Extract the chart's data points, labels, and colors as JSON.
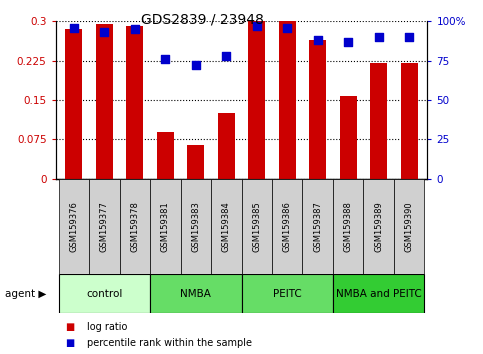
{
  "title": "GDS2839 / 23948",
  "samples": [
    "GSM159376",
    "GSM159377",
    "GSM159378",
    "GSM159381",
    "GSM159383",
    "GSM159384",
    "GSM159385",
    "GSM159386",
    "GSM159387",
    "GSM159388",
    "GSM159389",
    "GSM159390"
  ],
  "log_ratio": [
    0.285,
    0.295,
    0.29,
    0.09,
    0.065,
    0.125,
    0.3,
    0.3,
    0.265,
    0.157,
    0.22,
    0.22
  ],
  "percentile_rank": [
    96,
    93,
    95,
    76,
    72,
    78,
    97,
    96,
    88,
    87,
    90,
    90
  ],
  "bar_color": "#cc0000",
  "dot_color": "#0000cc",
  "grid_color": "#000000",
  "bg_xticklabels": "#d0d0d0",
  "groups": [
    {
      "label": "control",
      "start": 0,
      "end": 3,
      "color": "#ccffcc"
    },
    {
      "label": "NMBA",
      "start": 3,
      "end": 6,
      "color": "#66dd66"
    },
    {
      "label": "PEITC",
      "start": 6,
      "end": 9,
      "color": "#66dd66"
    },
    {
      "label": "NMBA and PEITC",
      "start": 9,
      "end": 12,
      "color": "#33cc33"
    }
  ],
  "ylim_left": [
    0,
    0.3
  ],
  "ylim_right": [
    0,
    100
  ],
  "yticks_left": [
    0,
    0.075,
    0.15,
    0.225,
    0.3
  ],
  "yticks_right": [
    0,
    25,
    50,
    75,
    100
  ],
  "legend_items": [
    {
      "label": "log ratio",
      "color": "#cc0000"
    },
    {
      "label": "percentile rank within the sample",
      "color": "#0000cc"
    }
  ],
  "title_fontsize": 10,
  "tick_fontsize": 7.5,
  "bar_width": 0.55,
  "dot_size": 28
}
